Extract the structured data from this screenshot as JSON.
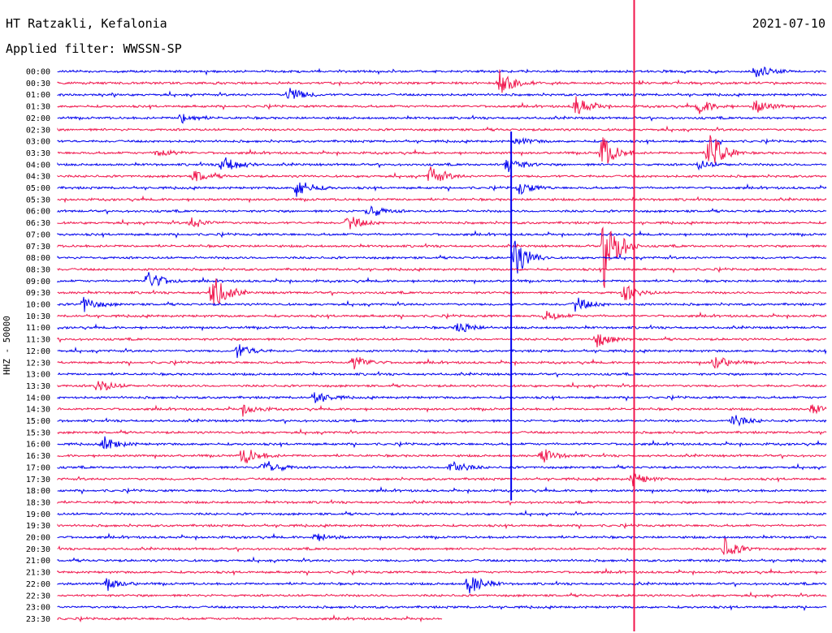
{
  "header": {
    "station": "HT Ratzakli, Kefalonia",
    "filter": "Applied filter: WWSSN-SP",
    "date": "2021-07-10"
  },
  "colors": {
    "trace_a": "#0000ee",
    "trace_b": "#f0154c"
  },
  "chart_data": {
    "type": "line",
    "title": "HT Ratzakli, Kefalonia",
    "subtitle": "Applied filter: WWSSN-SP",
    "date": "2021-07-10",
    "ylabel": "HHZ - 50000",
    "xlabel": "",
    "rows": [
      "00:00",
      "00:30",
      "01:00",
      "01:30",
      "02:00",
      "02:30",
      "03:00",
      "03:30",
      "04:00",
      "04:30",
      "05:00",
      "05:30",
      "06:00",
      "06:30",
      "07:00",
      "07:30",
      "08:00",
      "08:30",
      "09:00",
      "09:30",
      "10:00",
      "10:30",
      "11:00",
      "11:30",
      "12:00",
      "12:30",
      "13:00",
      "13:30",
      "14:00",
      "14:30",
      "15:00",
      "15:30",
      "16:00",
      "16:30",
      "17:00",
      "17:30",
      "18:00",
      "18:30",
      "19:00",
      "19:30",
      "20:00",
      "20:30",
      "21:00",
      "21:30",
      "22:00",
      "22:30",
      "23:00",
      "23:30"
    ],
    "row_duration_minutes": 30,
    "last_row_fraction": 0.5,
    "series": [
      {
        "color": "#0000ee"
      },
      {
        "color": "#f0154c"
      }
    ],
    "events": [
      {
        "row": 0,
        "minute": 27.2,
        "amp": 1.6
      },
      {
        "row": 1,
        "minute": 17.2,
        "amp": 3.0
      },
      {
        "row": 2,
        "minute": 9.0,
        "amp": 1.8
      },
      {
        "row": 3,
        "minute": 25.0,
        "amp": 1.7
      },
      {
        "row": 3,
        "minute": 27.2,
        "amp": 1.6
      },
      {
        "row": 3,
        "minute": 20.2,
        "amp": 2.2
      },
      {
        "row": 4,
        "minute": 4.8,
        "amp": 1.2
      },
      {
        "row": 6,
        "minute": 17.9,
        "amp": 0.9
      },
      {
        "row": 7,
        "minute": 3.9,
        "amp": 1.0
      },
      {
        "row": 7,
        "minute": 21.2,
        "amp": 4.0
      },
      {
        "row": 7,
        "minute": 25.4,
        "amp": 5.5
      },
      {
        "row": 8,
        "minute": 6.4,
        "amp": 2.5
      },
      {
        "row": 8,
        "minute": 17.5,
        "amp": 2.0
      },
      {
        "row": 8,
        "minute": 25.0,
        "amp": 1.0
      },
      {
        "row": 9,
        "minute": 5.3,
        "amp": 1.3
      },
      {
        "row": 9,
        "minute": 14.5,
        "amp": 2.4
      },
      {
        "row": 10,
        "minute": 9.3,
        "amp": 2.3
      },
      {
        "row": 10,
        "minute": 18.0,
        "amp": 1.4
      },
      {
        "row": 12,
        "minute": 12.1,
        "amp": 1.6
      },
      {
        "row": 13,
        "minute": 11.3,
        "amp": 1.8
      },
      {
        "row": 13,
        "minute": 5.2,
        "amp": 1.2
      },
      {
        "row": 15,
        "minute": 21.3,
        "amp": 9.0
      },
      {
        "row": 16,
        "minute": 17.8,
        "amp": 4.5
      },
      {
        "row": 18,
        "minute": 3.5,
        "amp": 2.5
      },
      {
        "row": 19,
        "minute": 6.0,
        "amp": 4.5
      },
      {
        "row": 19,
        "minute": 22.1,
        "amp": 1.8
      },
      {
        "row": 20,
        "minute": 1.0,
        "amp": 1.6
      },
      {
        "row": 20,
        "minute": 20.2,
        "amp": 1.6
      },
      {
        "row": 21,
        "minute": 19.0,
        "amp": 1.2
      },
      {
        "row": 22,
        "minute": 15.6,
        "amp": 1.4
      },
      {
        "row": 23,
        "minute": 21.0,
        "amp": 1.8
      },
      {
        "row": 24,
        "minute": 7.0,
        "amp": 1.6
      },
      {
        "row": 25,
        "minute": 11.5,
        "amp": 1.8
      },
      {
        "row": 25,
        "minute": 25.6,
        "amp": 1.7
      },
      {
        "row": 27,
        "minute": 1.5,
        "amp": 1.8
      },
      {
        "row": 28,
        "minute": 10.0,
        "amp": 1.5
      },
      {
        "row": 29,
        "minute": 7.2,
        "amp": 1.3
      },
      {
        "row": 29,
        "minute": 29.4,
        "amp": 1.1
      },
      {
        "row": 30,
        "minute": 26.3,
        "amp": 1.6
      },
      {
        "row": 32,
        "minute": 1.8,
        "amp": 1.6
      },
      {
        "row": 33,
        "minute": 7.2,
        "amp": 2.3
      },
      {
        "row": 33,
        "minute": 18.9,
        "amp": 1.6
      },
      {
        "row": 34,
        "minute": 8.0,
        "amp": 2.1
      },
      {
        "row": 34,
        "minute": 15.3,
        "amp": 1.9
      },
      {
        "row": 35,
        "minute": 22.4,
        "amp": 1.6
      },
      {
        "row": 40,
        "minute": 10.0,
        "amp": 1.1
      },
      {
        "row": 41,
        "minute": 26.0,
        "amp": 2.2
      },
      {
        "row": 44,
        "minute": 1.9,
        "amp": 1.3
      },
      {
        "row": 44,
        "minute": 16.0,
        "amp": 2.6
      }
    ],
    "spikes": [
      {
        "minute": 17.7,
        "from_row": 6,
        "to_row": 36,
        "color": "#0000ee"
      },
      {
        "minute": 22.5,
        "from_row": 0,
        "to_row": 48,
        "color": "#f0154c"
      }
    ]
  }
}
